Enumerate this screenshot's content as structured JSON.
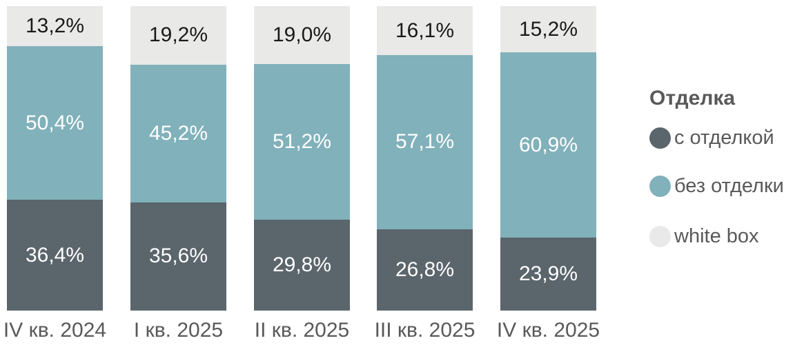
{
  "chart_data": {
    "type": "bar",
    "stacked": true,
    "percent_stacked": true,
    "categories": [
      "IV кв. 2024",
      "I кв. 2025",
      "II кв. 2025",
      "III кв. 2025",
      "IV кв. 2025"
    ],
    "series": [
      {
        "name": "с отделкой",
        "color": "#5b656c",
        "label_color": "#ffffff",
        "values": [
          36.4,
          35.6,
          29.8,
          26.8,
          23.9
        ]
      },
      {
        "name": "без отделки",
        "color": "#81b1ba",
        "label_color": "#ffffff",
        "values": [
          50.4,
          45.2,
          51.2,
          57.1,
          60.9
        ]
      },
      {
        "name": "white box",
        "color": "#e9e9e8",
        "label_color": "#1a1a1a",
        "values": [
          13.2,
          19.2,
          19.0,
          16.1,
          15.2
        ]
      }
    ],
    "stack_order_bottom_to_top": [
      "с отделкой",
      "без отделки",
      "white box"
    ],
    "value_label_decimal_separator": ",",
    "value_label_suffix": "%",
    "ylim": [
      0,
      100
    ],
    "grid": false,
    "legend_position": "right",
    "axis_label_color": "#595959"
  },
  "legend": {
    "title": "Отделка",
    "items": [
      {
        "label": "с отделкой",
        "color": "#5b656c"
      },
      {
        "label": "без отделки",
        "color": "#81b1ba"
      },
      {
        "label": "white box",
        "color": "#e9e9e9"
      }
    ]
  }
}
